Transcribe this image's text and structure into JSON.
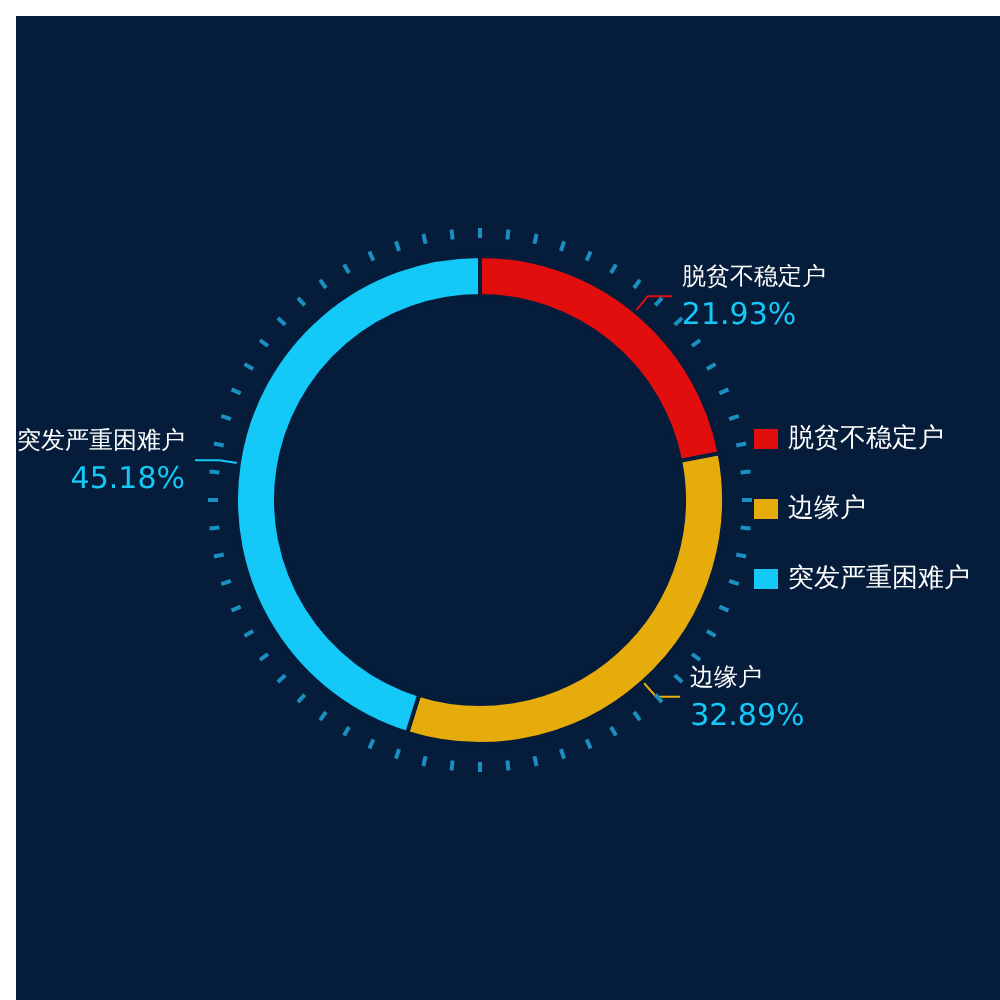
{
  "chart_data": {
    "type": "donut",
    "categories": [
      "脱贫不稳定户",
      "边缘户",
      "突发严重困难户"
    ],
    "values": [
      21.93,
      32.89,
      45.18
    ],
    "colors": [
      "#e20e0e",
      "#e6ac0c",
      "#14c8f8"
    ],
    "value_labels": [
      "21.93%",
      "32.89%",
      "45.18%"
    ],
    "legend": "right"
  }
}
